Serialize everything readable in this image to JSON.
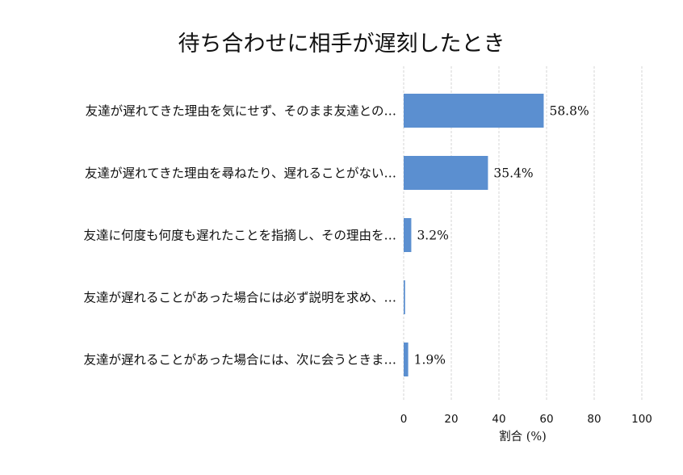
{
  "chart_data": {
    "type": "bar",
    "orientation": "horizontal",
    "title": "待ち合わせに相手が遅刻したとき",
    "xlabel": "割合 (%)",
    "ylabel": "",
    "xlim": [
      0,
      100
    ],
    "xticks": [
      "0",
      "20",
      "40",
      "60",
      "80",
      "100"
    ],
    "grid": true,
    "categories": [
      "友達が遅れてきた理由を気にせず、そのまま友達との…",
      "友達が遅れてきた理由を尋ねたり、遅れることがない…",
      "友達に何度も何度も遅れたことを指摘し、その理由を…",
      "友達が遅れることがあった場合には必ず説明を求め、…",
      "友達が遅れることがあった場合には、次に会うときま…"
    ],
    "values": [
      58.8,
      35.4,
      3.2,
      0.6,
      1.9
    ],
    "value_labels": [
      "58.8%",
      "35.4%",
      "3.2%",
      "",
      "1.9%"
    ],
    "bar_color": "#5b8fd0"
  }
}
